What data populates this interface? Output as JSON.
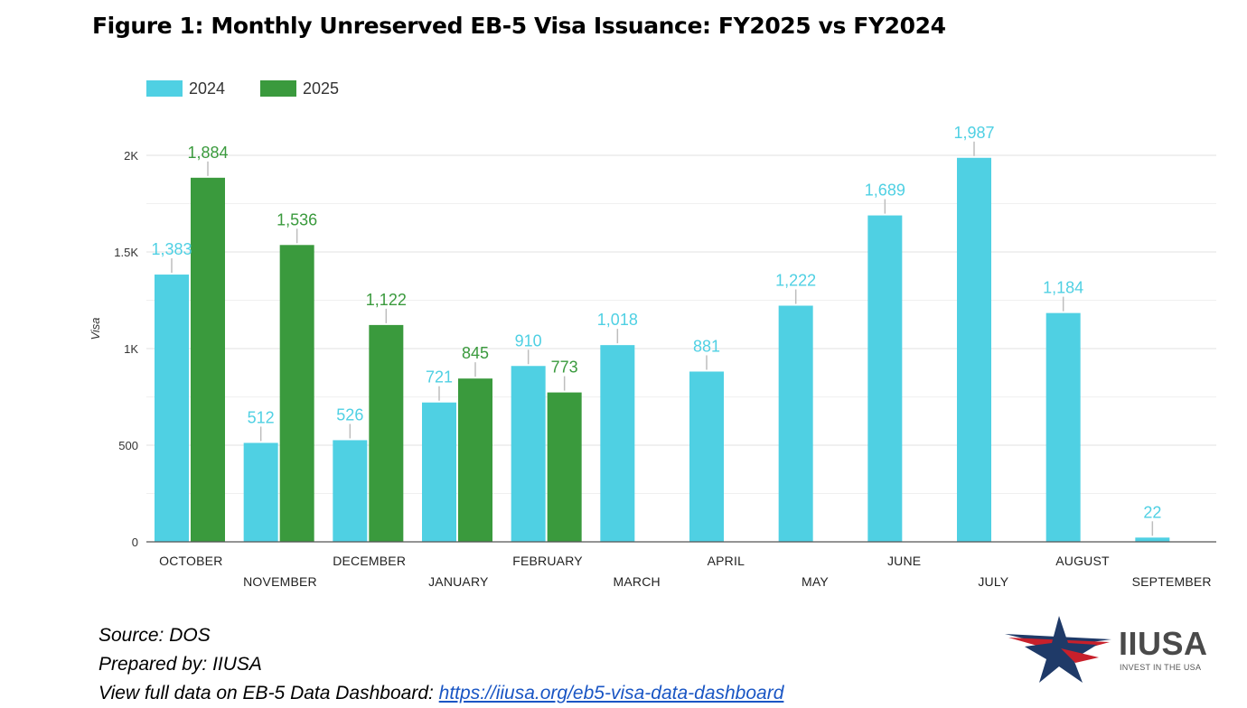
{
  "title": "Figure 1: Monthly Unreserved EB-5 Visa Issuance: FY2025 vs FY2024",
  "colors": {
    "series_2024": "#4fd0e3",
    "series_2025": "#3a9a3d",
    "grid": "#e6e6e6",
    "axis": "#555555"
  },
  "chart_data": {
    "type": "bar",
    "title": "Figure 1: Monthly Unreserved EB-5 Visa Issuance: FY2025 vs FY2024",
    "xlabel": "",
    "ylabel": "Visa",
    "ylim": [
      0,
      2000
    ],
    "yticks": [
      0,
      500,
      1000,
      1500,
      2000
    ],
    "ytick_labels": [
      "0",
      "500",
      "1K",
      "1.5K",
      "2K"
    ],
    "legend_position": "top-left",
    "grid": true,
    "categories": [
      "OCTOBER",
      "NOVEMBER",
      "DECEMBER",
      "JANUARY",
      "FEBRUARY",
      "MARCH",
      "APRIL",
      "MAY",
      "JUNE",
      "JULY",
      "AUGUST",
      "SEPTEMBER"
    ],
    "series": [
      {
        "name": "2024",
        "values": [
          1383,
          512,
          526,
          721,
          910,
          1018,
          881,
          1222,
          1689,
          1987,
          1184,
          22
        ],
        "labels": [
          "1,383",
          "512",
          "526",
          "721",
          "910",
          "1,018",
          "881",
          "1,222",
          "1,689",
          "1,987",
          "1,184",
          "22"
        ]
      },
      {
        "name": "2025",
        "values": [
          1884,
          1536,
          1122,
          845,
          773,
          null,
          null,
          null,
          null,
          null,
          null,
          null
        ],
        "labels": [
          "1,884",
          "1,536",
          "1,122",
          "845",
          "773",
          null,
          null,
          null,
          null,
          null,
          null,
          null
        ]
      }
    ]
  },
  "footer": {
    "source": "Source: DOS",
    "prepared": "Prepared by: IIUSA",
    "view_prefix": "View full data on EB-5 Data Dashboard: ",
    "link_text": "https://iiusa.org/eb5-visa-data-dashboard"
  },
  "logo": {
    "brand": "IIUSA",
    "tagline": "INVEST IN THE USA"
  }
}
